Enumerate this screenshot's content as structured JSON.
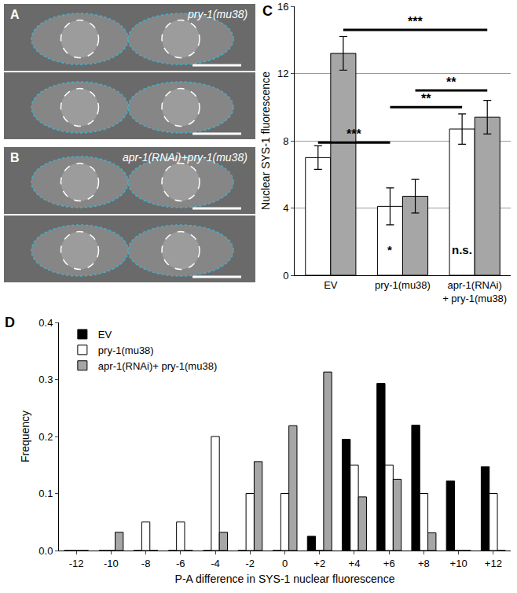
{
  "panels": [
    {
      "panel": "A",
      "caption": "pry-1(mu38)"
    },
    {
      "panel": "B",
      "caption": "apr-1(RNAi)+pry-1(mu38)"
    }
  ],
  "chart_data": [
    {
      "panel": "C",
      "type": "bar",
      "categories": [
        "EV",
        "pry-1(mu38)",
        "apr-1(RNAi)\n+ pry-1(mu38)"
      ],
      "series": [
        {
          "color": "#ffffff",
          "values": [
            7.0,
            4.1,
            8.7
          ],
          "errors": [
            0.7,
            1.1,
            0.9
          ]
        },
        {
          "color": "#a6a6a6",
          "values": [
            13.2,
            4.7,
            9.4
          ],
          "errors": [
            1.0,
            1.0,
            1.0
          ]
        }
      ],
      "y_label": "Nuclear SYS-1 fluorescence",
      "ylim": [
        0,
        16
      ],
      "yticks": [
        0,
        4,
        8,
        12,
        16
      ],
      "grid": true,
      "annotations": [
        {
          "text": "***",
          "y": 14.6,
          "from": [
            0,
            1
          ],
          "to": [
            2,
            1
          ]
        },
        {
          "text": "**",
          "y": 11.0,
          "from": [
            1,
            1
          ],
          "to": [
            2,
            1
          ]
        },
        {
          "text": "**",
          "y": 10.0,
          "from": [
            1,
            0
          ],
          "to": [
            2,
            0
          ]
        },
        {
          "text": "***",
          "y": 7.9,
          "from": [
            0,
            0
          ],
          "to": [
            1,
            0
          ]
        },
        {
          "text": "*",
          "y": 1.5,
          "at": [
            1,
            0
          ]
        },
        {
          "text": "n.s.",
          "y": 1.5,
          "at": [
            2,
            0
          ]
        }
      ]
    },
    {
      "panel": "D",
      "type": "bar",
      "x": [
        -12,
        -10,
        -8,
        -6,
        -4,
        -2,
        0,
        2,
        4,
        6,
        8,
        10,
        12
      ],
      "series": [
        {
          "name": "EV",
          "color": "#000000",
          "values": [
            0,
            0,
            0,
            0,
            0,
            0,
            0,
            0.025,
            0.195,
            0.293,
            0.22,
            0.122,
            0.147
          ]
        },
        {
          "name": "pry-1(mu38)",
          "color": "#ffffff",
          "values": [
            0,
            0,
            0.05,
            0.05,
            0.2,
            0.1,
            0.1,
            0,
            0.15,
            0.15,
            0.1,
            0,
            0.1
          ]
        },
        {
          "name": "apr-1(RNAi)+ pry-1(mu38)",
          "color": "#a6a6a6",
          "values": [
            0,
            0.032,
            0,
            0,
            0.032,
            0.156,
            0.219,
            0.313,
            0.094,
            0.125,
            0.031,
            0,
            0
          ]
        }
      ],
      "x_label": "P-A difference in SYS-1 nuclear fluorescence",
      "y_label": "Frequency",
      "xlim": [
        -13,
        13
      ],
      "xticks": [
        -12,
        -10,
        -8,
        -6,
        -4,
        -2,
        {
          "value": 0,
          "label": "0"
        },
        {
          "value": 2,
          "label": "+2"
        },
        {
          "value": 4,
          "label": "+4"
        },
        {
          "value": 6,
          "label": "+6"
        },
        {
          "value": 8,
          "label": "+8"
        },
        {
          "value": 10,
          "label": "+10"
        },
        {
          "value": 12,
          "label": "+12"
        }
      ],
      "ylim": [
        0,
        0.4
      ],
      "yticks": [
        {
          "value": 0,
          "label": "0.0"
        },
        0.1,
        0.2,
        0.3,
        0.4
      ],
      "grid": false,
      "legend": "upper left"
    }
  ]
}
